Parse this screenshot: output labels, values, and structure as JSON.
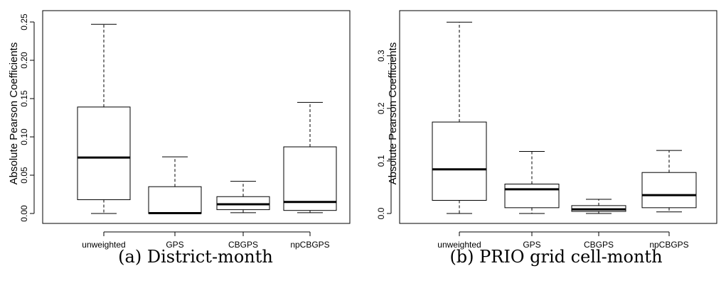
{
  "chart_data": [
    {
      "type": "box",
      "caption": "(a) District-month",
      "ylabel": "Absolute Pearson Coefficients",
      "ylim": [
        0,
        0.25
      ],
      "yticks": [
        "0.00",
        "0.05",
        "0.10",
        "0.15",
        "0.20",
        "0.25"
      ],
      "categories": [
        "unweighted",
        "GPS",
        "CBGPS",
        "npCBGPS"
      ],
      "boxes": [
        {
          "min": 0.0,
          "q1": 0.018,
          "median": 0.073,
          "q3": 0.139,
          "max": 0.247
        },
        {
          "min": 0.0,
          "q1": 0.0,
          "median": 0.0005,
          "q3": 0.035,
          "max": 0.074
        },
        {
          "min": 0.001,
          "q1": 0.005,
          "median": 0.012,
          "q3": 0.022,
          "max": 0.042
        },
        {
          "min": 0.001,
          "q1": 0.004,
          "median": 0.015,
          "q3": 0.087,
          "max": 0.145
        }
      ]
    },
    {
      "type": "box",
      "caption": "(b) PRIO grid cell-month",
      "ylabel": "Absolute Pearson Coefficients",
      "ylim": [
        0,
        0.35
      ],
      "yticks": [
        "0.0",
        "0.1",
        "0.2",
        "0.3"
      ],
      "categories": [
        "unweighted",
        "GPS",
        "CBGPS",
        "npCBGPS"
      ],
      "boxes": [
        {
          "min": 0.0,
          "q1": 0.025,
          "median": 0.084,
          "q3": 0.174,
          "max": 0.364
        },
        {
          "min": 0.0,
          "q1": 0.011,
          "median": 0.046,
          "q3": 0.056,
          "max": 0.118
        },
        {
          "min": 0.0,
          "q1": 0.004,
          "median": 0.008,
          "q3": 0.015,
          "max": 0.027
        },
        {
          "min": 0.003,
          "q1": 0.011,
          "median": 0.035,
          "q3": 0.078,
          "max": 0.12
        }
      ]
    }
  ]
}
